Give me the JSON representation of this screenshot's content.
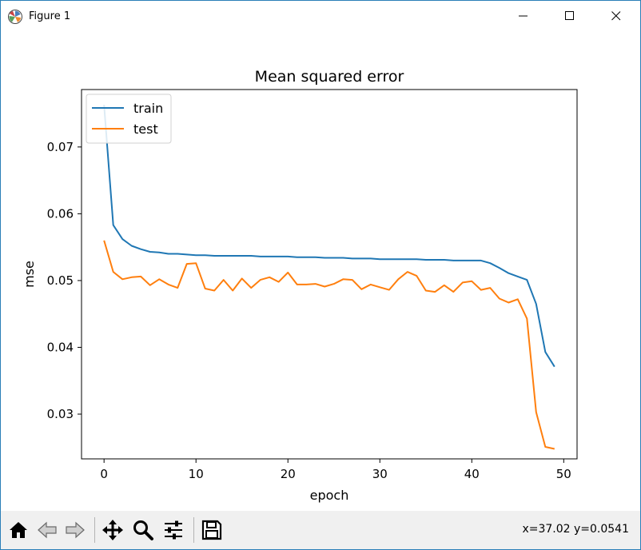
{
  "window": {
    "title": "Figure 1",
    "icon": "matplotlib-icon",
    "controls": [
      "minimize-icon",
      "maximize-icon",
      "close-icon"
    ]
  },
  "toolbar": {
    "buttons": [
      "home-icon",
      "back-icon",
      "forward-icon",
      "pan-icon",
      "zoom-icon",
      "configure-subplots-icon",
      "save-icon"
    ],
    "coords": "x=37.02 y=0.0541"
  },
  "colors": {
    "train": "#1f77b4",
    "test": "#ff7f0e"
  },
  "chart_data": {
    "type": "line",
    "title": "Mean squared error",
    "xlabel": "epoch",
    "ylabel": "mse",
    "xlim": [
      -2.45,
      51.45
    ],
    "ylim": [
      0.0233,
      0.0786
    ],
    "xticks": [
      0,
      10,
      20,
      30,
      40,
      50
    ],
    "yticks": [
      0.03,
      0.04,
      0.05,
      0.06,
      0.07
    ],
    "xtick_labels": [
      "0",
      "10",
      "20",
      "30",
      "40",
      "50"
    ],
    "ytick_labels": [
      "0.03",
      "0.04",
      "0.05",
      "0.06",
      "0.07"
    ],
    "legend": {
      "position": "upper-left",
      "entries": [
        "train",
        "test"
      ]
    },
    "grid": false,
    "x": [
      0,
      1,
      2,
      3,
      4,
      5,
      6,
      7,
      8,
      9,
      10,
      11,
      12,
      13,
      14,
      15,
      16,
      17,
      18,
      19,
      20,
      21,
      22,
      23,
      24,
      25,
      26,
      27,
      28,
      29,
      30,
      31,
      32,
      33,
      34,
      35,
      36,
      37,
      38,
      39,
      40,
      41,
      42,
      43,
      44,
      45,
      46,
      47,
      48,
      49
    ],
    "series": [
      {
        "name": "train",
        "values": [
          0.0763,
          0.0583,
          0.0562,
          0.0552,
          0.0547,
          0.0543,
          0.0542,
          0.054,
          0.054,
          0.0539,
          0.0538,
          0.0538,
          0.0537,
          0.0537,
          0.0537,
          0.0537,
          0.0537,
          0.0536,
          0.0536,
          0.0536,
          0.0536,
          0.0535,
          0.0535,
          0.0535,
          0.0534,
          0.0534,
          0.0534,
          0.0533,
          0.0533,
          0.0533,
          0.0532,
          0.0532,
          0.0532,
          0.0532,
          0.0532,
          0.0531,
          0.0531,
          0.0531,
          0.053,
          0.053,
          0.053,
          0.053,
          0.0526,
          0.0519,
          0.0511,
          0.0506,
          0.0501,
          0.0465,
          0.0393,
          0.0371
        ]
      },
      {
        "name": "test",
        "values": [
          0.056,
          0.0513,
          0.0502,
          0.0505,
          0.0506,
          0.0493,
          0.0502,
          0.0494,
          0.0489,
          0.0525,
          0.0526,
          0.0488,
          0.0485,
          0.0501,
          0.0485,
          0.0503,
          0.0489,
          0.0501,
          0.0505,
          0.0498,
          0.0512,
          0.0494,
          0.0494,
          0.0495,
          0.0491,
          0.0495,
          0.0502,
          0.0501,
          0.0487,
          0.0494,
          0.049,
          0.0486,
          0.0502,
          0.0513,
          0.0507,
          0.0485,
          0.0483,
          0.0493,
          0.0483,
          0.0497,
          0.0499,
          0.0486,
          0.0489,
          0.0473,
          0.0467,
          0.0472,
          0.0443,
          0.0303,
          0.0251,
          0.0248
        ]
      }
    ]
  }
}
